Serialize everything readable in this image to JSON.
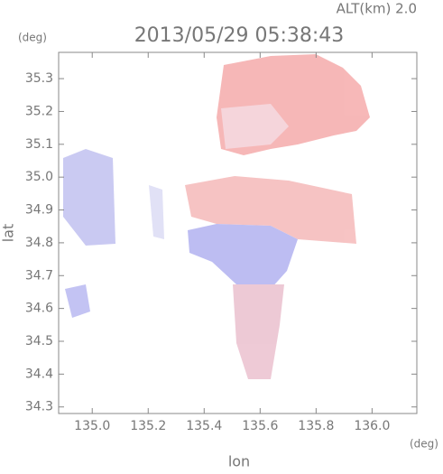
{
  "chart_data": {
    "type": "image",
    "title": "2013/05/29 05:38:43",
    "annotation": "ALT(km) 2.0",
    "x_unit": "(deg)",
    "y_unit": "(deg)",
    "x_label": "lon",
    "y_label": "lat",
    "xlim": [
      134.88,
      136.16
    ],
    "ylim": [
      34.28,
      35.38
    ],
    "xticks": [
      {
        "value": 135,
        "label": "135.0"
      },
      135.2,
      135.4,
      135.6,
      135.8,
      {
        "value": 136,
        "label": "136.0"
      }
    ],
    "yticks": [
      35.3,
      35.2,
      35.1,
      {
        "value": 35,
        "label": "35.0"
      },
      34.9,
      34.8,
      34.7,
      34.6,
      34.5,
      34.4,
      34.3
    ]
  }
}
